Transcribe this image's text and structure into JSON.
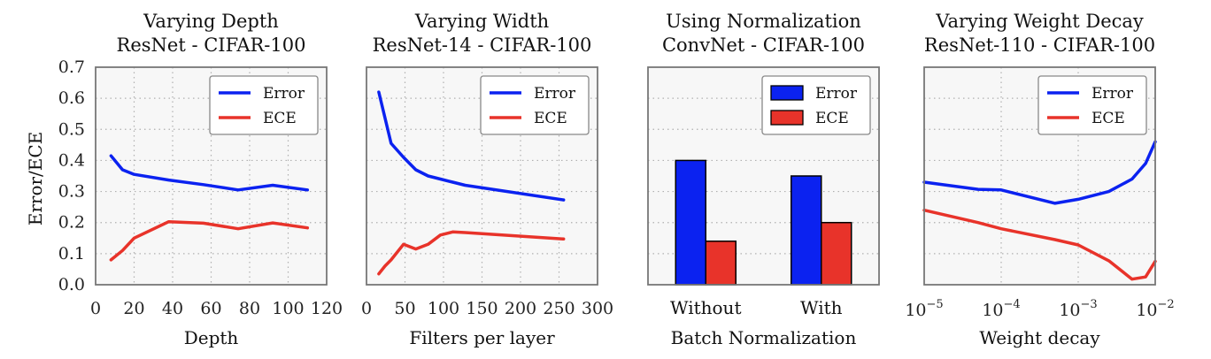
{
  "figure": {
    "ylabel": "Error/ECE"
  },
  "colors": {
    "error": "#0b22f0",
    "ece": "#e8332a",
    "panel_bg": "#f7f7f7",
    "grid": "#b0b0b0"
  },
  "chart_data": [
    {
      "type": "line",
      "title": [
        "Varying Depth",
        "ResNet - CIFAR-100"
      ],
      "xlabel": "Depth",
      "xscale": "linear",
      "xlim": [
        0,
        120
      ],
      "ylim": [
        0,
        0.7
      ],
      "xticks": [
        0,
        20,
        40,
        60,
        80,
        100,
        120
      ],
      "yticks": [
        0.0,
        0.1,
        0.2,
        0.3,
        0.4,
        0.5,
        0.6,
        0.7
      ],
      "grid": true,
      "legend": "top-right",
      "series": [
        {
          "name": "Error",
          "color_key": "error",
          "x": [
            8,
            14,
            20,
            38,
            56,
            74,
            92,
            110
          ],
          "y": [
            0.415,
            0.37,
            0.355,
            0.337,
            0.322,
            0.305,
            0.32,
            0.305
          ]
        },
        {
          "name": "ECE",
          "color_key": "ece",
          "x": [
            8,
            14,
            20,
            38,
            56,
            74,
            92,
            110
          ],
          "y": [
            0.08,
            0.11,
            0.15,
            0.203,
            0.198,
            0.18,
            0.199,
            0.183
          ]
        }
      ]
    },
    {
      "type": "line",
      "title": [
        "Varying Width",
        "ResNet-14 - CIFAR-100"
      ],
      "xlabel": "Filters per layer",
      "xscale": "linear",
      "xlim": [
        0,
        300
      ],
      "ylim": [
        0,
        0.7
      ],
      "xticks": [
        0,
        50,
        100,
        150,
        200,
        250,
        300
      ],
      "yticks": [
        0.0,
        0.1,
        0.2,
        0.3,
        0.4,
        0.5,
        0.6,
        0.7
      ],
      "grid": true,
      "legend": "top-right",
      "series": [
        {
          "name": "Error",
          "color_key": "error",
          "x": [
            16,
            32,
            48,
            64,
            80,
            96,
            112,
            128,
            256
          ],
          "y": [
            0.62,
            0.455,
            0.41,
            0.37,
            0.35,
            0.34,
            0.33,
            0.32,
            0.273
          ]
        },
        {
          "name": "ECE",
          "color_key": "ece",
          "x": [
            16,
            24,
            32,
            48,
            64,
            80,
            96,
            112,
            128,
            256
          ],
          "y": [
            0.035,
            0.06,
            0.08,
            0.13,
            0.115,
            0.13,
            0.16,
            0.17,
            0.168,
            0.147
          ]
        }
      ]
    },
    {
      "type": "bar",
      "title": [
        "Using Normalization",
        "ConvNet - CIFAR-100"
      ],
      "xlabel": "Batch Normalization",
      "categories": [
        "Without",
        "With"
      ],
      "ylim": [
        0,
        0.7
      ],
      "yticks": [
        0.0,
        0.1,
        0.2,
        0.3,
        0.4,
        0.5,
        0.6,
        0.7
      ],
      "grid": true,
      "legend": "top-right",
      "series": [
        {
          "name": "Error",
          "color_key": "error",
          "values": [
            0.4,
            0.35
          ]
        },
        {
          "name": "ECE",
          "color_key": "ece",
          "values": [
            0.14,
            0.2
          ]
        }
      ]
    },
    {
      "type": "line",
      "title": [
        "Varying Weight Decay",
        "ResNet-110 - CIFAR-100"
      ],
      "xlabel": "Weight decay",
      "xscale": "log",
      "xlim": [
        1e-05,
        0.01
      ],
      "ylim": [
        0,
        0.7
      ],
      "xticks": [
        1e-05,
        0.0001,
        0.001,
        0.01
      ],
      "xtick_labels": [
        {
          "base": "10",
          "exp": "−5"
        },
        {
          "base": "10",
          "exp": "−4"
        },
        {
          "base": "10",
          "exp": "−3"
        },
        {
          "base": "10",
          "exp": "−2"
        }
      ],
      "yticks": [
        0.0,
        0.1,
        0.2,
        0.3,
        0.4,
        0.5,
        0.6,
        0.7
      ],
      "grid": true,
      "legend": "top-right",
      "series": [
        {
          "name": "Error",
          "color_key": "error",
          "x": [
            1e-05,
            5e-05,
            0.0001,
            0.0005,
            0.001,
            0.0025,
            0.005,
            0.0075,
            0.01
          ],
          "y": [
            0.33,
            0.307,
            0.305,
            0.262,
            0.275,
            0.3,
            0.34,
            0.39,
            0.46
          ]
        },
        {
          "name": "ECE",
          "color_key": "ece",
          "x": [
            1e-05,
            5e-05,
            0.0001,
            0.0005,
            0.001,
            0.0025,
            0.005,
            0.0075,
            0.01
          ],
          "y": [
            0.24,
            0.2,
            0.18,
            0.145,
            0.128,
            0.077,
            0.018,
            0.025,
            0.075
          ]
        }
      ]
    }
  ]
}
